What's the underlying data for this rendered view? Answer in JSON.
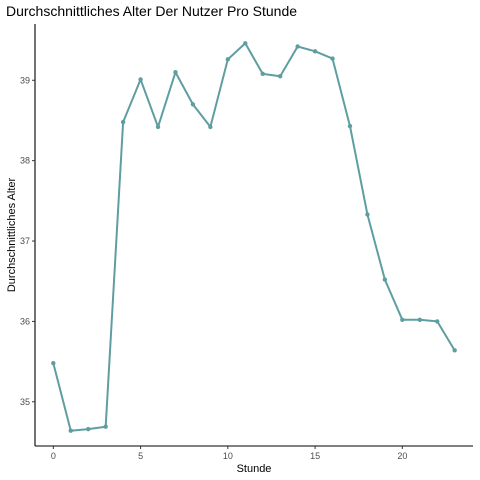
{
  "chart_data": {
    "type": "line",
    "title": "Durchschnittliches Alter Der Nutzer Pro Stunde",
    "xlabel": "Stunde",
    "ylabel": "Durchschnittliches Alter",
    "xlim": [
      -1.05,
      24.05
    ],
    "ylim": [
      34.45,
      39.7
    ],
    "xticks": [
      0,
      5,
      10,
      15,
      20
    ],
    "yticks": [
      35,
      36,
      37,
      38,
      39
    ],
    "grid": false,
    "line_color": "#5f9ea0",
    "x": [
      0,
      1,
      2,
      3,
      4,
      5,
      6,
      7,
      8,
      9,
      10,
      11,
      12,
      13,
      14,
      15,
      16,
      17,
      18,
      19,
      20,
      21,
      22,
      23
    ],
    "y": [
      35.48,
      34.64,
      34.66,
      34.69,
      38.48,
      39.01,
      38.42,
      39.1,
      38.7,
      38.42,
      39.26,
      39.46,
      39.08,
      39.05,
      39.42,
      39.36,
      39.27,
      38.43,
      37.33,
      36.52,
      36.02,
      36.02,
      36.0,
      35.64
    ]
  }
}
